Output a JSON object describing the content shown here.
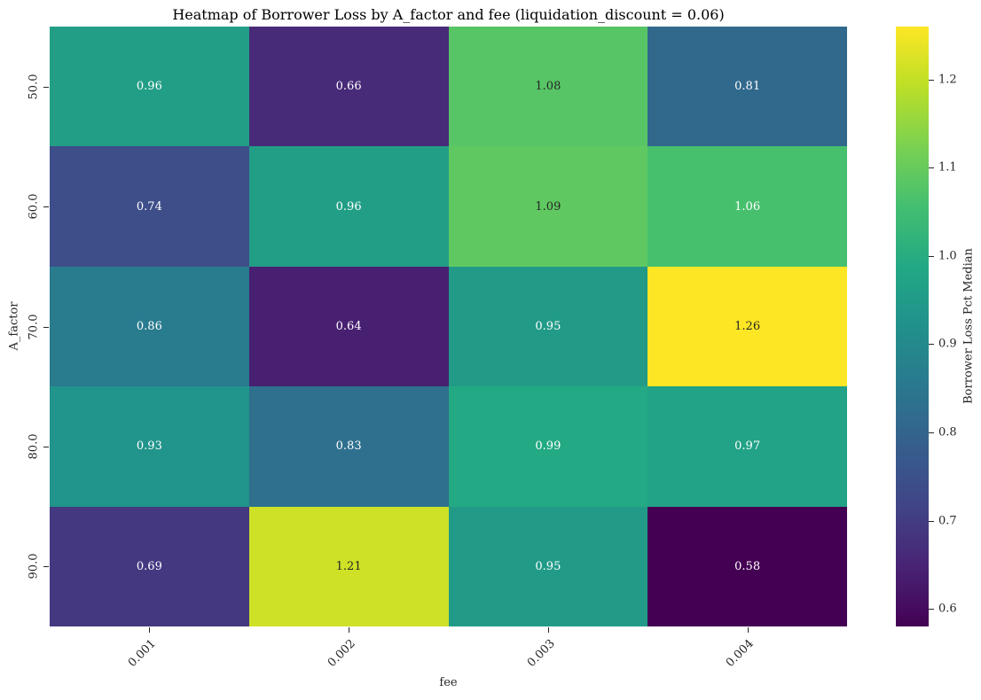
{
  "title": "Heatmap of Borrower Loss by A_factor and fee (liquidation_discount = 0.06)",
  "chart_data": {
    "type": "heatmap",
    "title": "Heatmap of Borrower Loss by A_factor and fee (liquidation_discount = 0.06)",
    "xlabel": "fee",
    "ylabel": "A_factor",
    "x_categories": [
      "0.001",
      "0.002",
      "0.003",
      "0.004"
    ],
    "y_categories": [
      "50.0",
      "60.0",
      "70.0",
      "80.0",
      "90.0"
    ],
    "values": [
      [
        0.96,
        0.66,
        1.08,
        0.81
      ],
      [
        0.74,
        0.96,
        1.09,
        1.06
      ],
      [
        0.86,
        0.64,
        0.95,
        1.26
      ],
      [
        0.93,
        0.83,
        0.99,
        0.97
      ],
      [
        0.69,
        1.21,
        0.95,
        0.58
      ]
    ],
    "cell_colors": [
      [
        "#229e87",
        "#472a78",
        "#57c565",
        "#31698d"
      ],
      [
        "#3d4e89",
        "#229e87",
        "#5fc861",
        "#47c06e"
      ],
      [
        "#297b8e",
        "#472071",
        "#219b88",
        "#fde725"
      ],
      [
        "#21948b",
        "#2e708e",
        "#23a983",
        "#22a286"
      ],
      [
        "#443880",
        "#cee126",
        "#219b88",
        "#440154"
      ]
    ],
    "cell_text_is_dark": [
      [
        false,
        false,
        true,
        false
      ],
      [
        false,
        false,
        true,
        false
      ],
      [
        false,
        false,
        false,
        true
      ],
      [
        false,
        false,
        false,
        false
      ],
      [
        false,
        true,
        false,
        false
      ]
    ],
    "text_dark_color": "#262626",
    "text_light_color": "#ffffff",
    "colormap": "viridis",
    "grid": false,
    "colorbar": {
      "label": "Borrower Loss Pct Median",
      "vmin": 0.58,
      "vmax": 1.26,
      "tick_labels": [
        "0.6",
        "0.7",
        "0.8",
        "0.9",
        "1.0",
        "1.1",
        "1.2"
      ],
      "tick_values": [
        0.6,
        0.7,
        0.8,
        0.9,
        1.0,
        1.1,
        1.2
      ],
      "gradient_stops": [
        {
          "t": 0.0,
          "color": "#440154"
        },
        {
          "t": 0.102,
          "color": "#482475"
        },
        {
          "t": 0.2,
          "color": "#414487"
        },
        {
          "t": 0.302,
          "color": "#355f8d"
        },
        {
          "t": 0.4,
          "color": "#2a788e"
        },
        {
          "t": 0.502,
          "color": "#21918c"
        },
        {
          "t": 0.6,
          "color": "#22a884"
        },
        {
          "t": 0.702,
          "color": "#44bf70"
        },
        {
          "t": 0.8,
          "color": "#7ad151"
        },
        {
          "t": 0.902,
          "color": "#bddf26"
        },
        {
          "t": 1.0,
          "color": "#fde725"
        }
      ]
    }
  }
}
